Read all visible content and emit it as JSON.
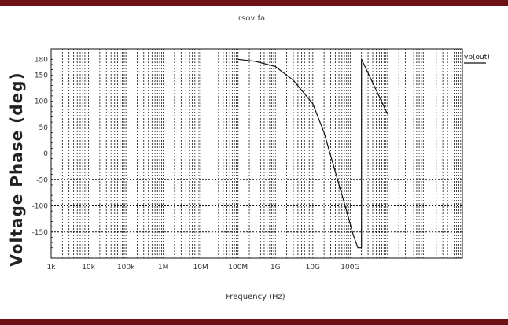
{
  "colors": {
    "border": "#6b1216",
    "curve": "#111111",
    "grid": "#111111"
  },
  "chart_data": {
    "type": "line",
    "title": "rsov fa",
    "xlabel": "Frequency (Hz)",
    "ylabel": "Voltage Phase (deg)",
    "x_scale": "log",
    "xlim": [
      1,
      100000000000
    ],
    "ylim": [
      -200,
      200
    ],
    "grid": "x-log-minor dotted; y dotted at -50, -100, -150",
    "legend_position": "top-right",
    "x_ticks": [
      {
        "value": 1,
        "label": "1k"
      },
      {
        "value": 10,
        "label": "10k"
      },
      {
        "value": 100,
        "label": "100k"
      },
      {
        "value": 1000,
        "label": "1M"
      },
      {
        "value": 10000,
        "label": "10M"
      },
      {
        "value": 100000,
        "label": "100M"
      },
      {
        "value": 1000000,
        "label": "1G"
      },
      {
        "value": 10000000,
        "label": "10G"
      },
      {
        "value": 100000000,
        "label": "100G"
      }
    ],
    "y_ticks": [
      {
        "value": 180,
        "label": "180"
      },
      {
        "value": 150,
        "label": "150"
      },
      {
        "value": 100,
        "label": "100"
      },
      {
        "value": 50,
        "label": "50"
      },
      {
        "value": 0,
        "label": "0"
      },
      {
        "value": -50,
        "label": "-50"
      },
      {
        "value": -100,
        "label": "-100"
      },
      {
        "value": -150,
        "label": "-150"
      }
    ],
    "series": [
      {
        "name": "vp(out)",
        "points": [
          [
            100000,
            180
          ],
          [
            300000,
            176
          ],
          [
            1000000,
            166
          ],
          [
            3000000,
            140
          ],
          [
            10000000,
            95
          ],
          [
            20000000,
            40
          ],
          [
            40000000,
            -35
          ],
          [
            80000000,
            -110
          ],
          [
            120000000,
            -155
          ],
          [
            160000000,
            -180
          ],
          [
            200000000,
            180
          ],
          [
            400000000,
            135
          ],
          [
            1000000000,
            75
          ]
        ]
      }
    ]
  }
}
